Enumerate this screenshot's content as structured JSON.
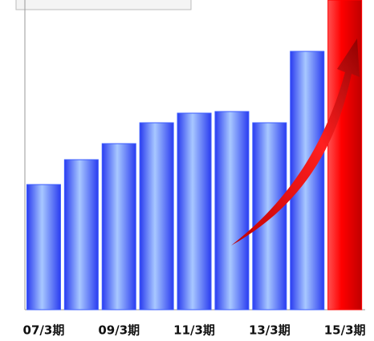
{
  "chart_data": {
    "type": "bar",
    "categories": [
      "07/3期",
      null,
      "09/3期",
      null,
      "11/3期",
      null,
      "13/3期",
      null,
      "15/3期"
    ],
    "values": [
      156,
      187,
      207,
      233,
      245,
      247,
      233,
      322,
      386
    ],
    "colors": [
      "#3b5cff",
      "#3b5cff",
      "#3b5cff",
      "#3b5cff",
      "#3b5cff",
      "#3b5cff",
      "#3b5cff",
      "#3b5cff",
      "#ff0000"
    ],
    "ylim": [
      0,
      386
    ]
  }
}
